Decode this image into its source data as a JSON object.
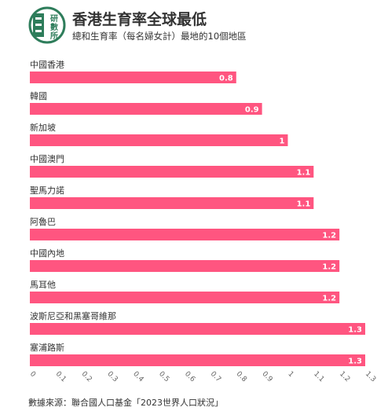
{
  "header": {
    "title": "香港生育率全球最低",
    "subtitle": "總和生育率（每名婦女計）最地的10個地區",
    "logo_text": "研數所"
  },
  "chart_data": {
    "type": "bar",
    "orientation": "horizontal",
    "categories": [
      "中國香港",
      "韓國",
      "新加坡",
      "中國澳門",
      "聖馬力諾",
      "阿魯巴",
      "中國內地",
      "馬耳他",
      "波斯尼亞和黑塞哥維那",
      "塞浦路斯"
    ],
    "values": [
      0.8,
      0.9,
      1,
      1.1,
      1.1,
      1.2,
      1.2,
      1.2,
      1.3,
      1.3
    ],
    "value_labels": [
      "0.8",
      "0.9",
      "1",
      "1.1",
      "1.1",
      "1.2",
      "1.2",
      "1.2",
      "1.3",
      "1.3"
    ],
    "xlim": [
      0,
      1.3
    ],
    "x_ticks": [
      "0",
      "0.1",
      "0.2",
      "0.3",
      "0.4",
      "0.5",
      "0.6",
      "0.7",
      "0.8",
      "0.9",
      "1",
      "1.1",
      "1.2",
      "1.3"
    ],
    "grid": false,
    "bar_color": "#ff5580",
    "value_label_color": "#ffffff"
  },
  "footer": {
    "source": "數據來源：聯合國人口基金「2023世界人口狀況」"
  },
  "colors": {
    "logo": "#2e7d5b",
    "text": "#333333",
    "axis": "#666666"
  }
}
